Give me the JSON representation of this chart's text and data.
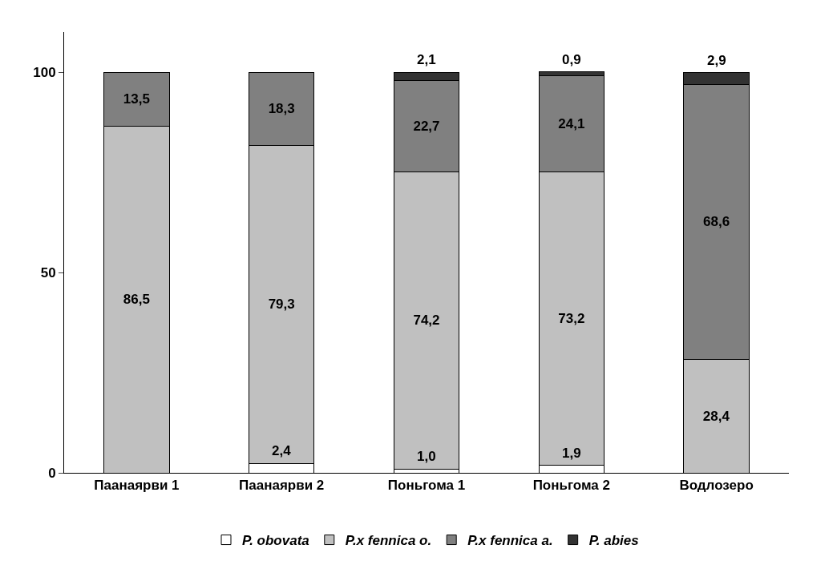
{
  "chart_data": {
    "type": "bar",
    "stacked": true,
    "categories": [
      "Паанаярви 1",
      "Паанаярви 2",
      "Поньгома 1",
      "Поньгома 2",
      "Водлозеро"
    ],
    "series": [
      {
        "name": "P. obovata",
        "color": "#ffffff",
        "values": [
          null,
          2.4,
          1.0,
          1.9,
          null
        ],
        "value_labels": [
          null,
          "2,4",
          "1,0",
          "1,9",
          null
        ]
      },
      {
        "name": "P.x fennica o.",
        "color": "#c0c0c0",
        "values": [
          86.5,
          79.3,
          74.2,
          73.2,
          28.4
        ],
        "value_labels": [
          "86,5",
          "79,3",
          "74,2",
          "73,2",
          "28,4"
        ]
      },
      {
        "name": "P.x fennica a.",
        "color": "#808080",
        "values": [
          13.5,
          18.3,
          22.7,
          24.1,
          68.6
        ],
        "value_labels": [
          "13,5",
          "18,3",
          "22,7",
          "24,1",
          "68,6"
        ]
      },
      {
        "name": "P. abies",
        "color": "#333333",
        "values": [
          null,
          null,
          2.1,
          0.9,
          2.9
        ],
        "value_labels": [
          null,
          null,
          "2,1",
          "0,9",
          "2,9"
        ]
      }
    ],
    "ylim": [
      0,
      110
    ],
    "yticks": [
      0,
      50,
      100
    ],
    "grid": false,
    "legend": "bottom"
  }
}
